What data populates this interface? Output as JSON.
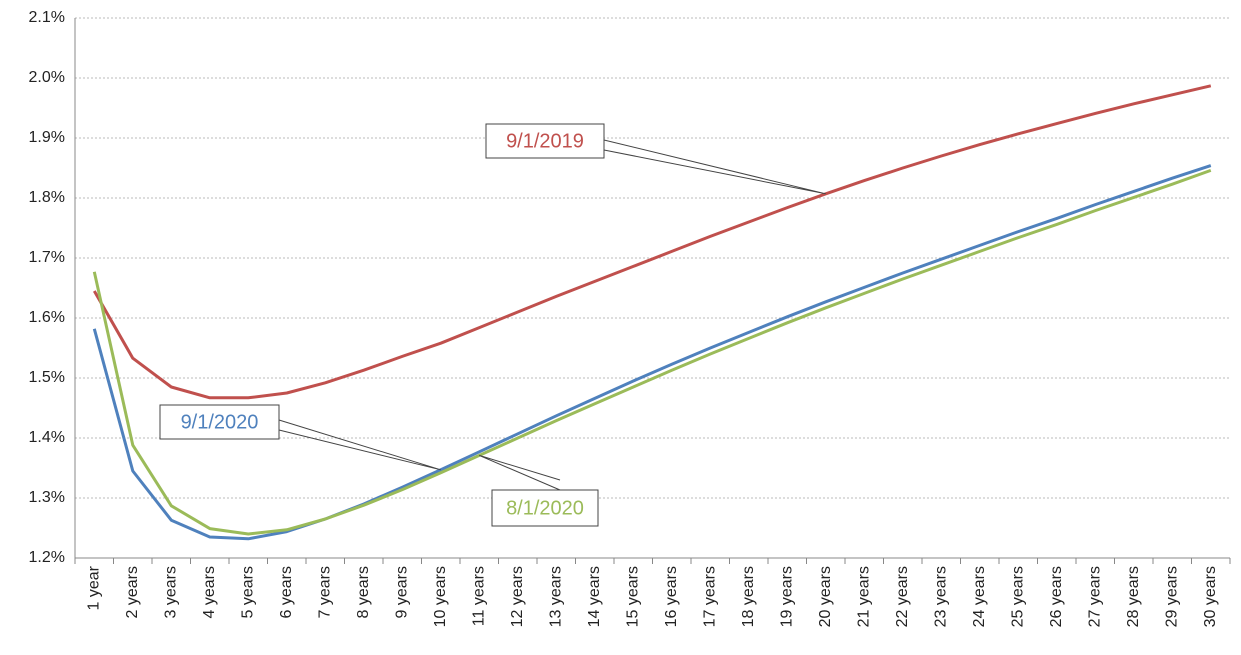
{
  "chart_data": {
    "type": "line",
    "categories": [
      "1 year",
      "2 years",
      "3 years",
      "4 years",
      "5 years",
      "6 years",
      "7 years",
      "8 years",
      "9 years",
      "10 years",
      "11 years",
      "12 years",
      "13 years",
      "14 years",
      "15 years",
      "16 years",
      "17 years",
      "18 years",
      "19 years",
      "20 years",
      "21 years",
      "22 years",
      "23 years",
      "24 years",
      "25 years",
      "26 years",
      "27 years",
      "28 years",
      "29 years",
      "30 years"
    ],
    "series": [
      {
        "name": "9/1/2019",
        "color": "#c0504d",
        "values": [
          1.645,
          1.533,
          1.485,
          1.467,
          1.467,
          1.475,
          1.492,
          1.513,
          1.536,
          1.558,
          1.584,
          1.61,
          1.636,
          1.661,
          1.686,
          1.711,
          1.736,
          1.76,
          1.784,
          1.807,
          1.829,
          1.85,
          1.87,
          1.889,
          1.907,
          1.924,
          1.941,
          1.957,
          1.972,
          1.987
        ]
      },
      {
        "name": "9/1/2020",
        "color": "#4f81bd",
        "values": [
          1.582,
          1.345,
          1.263,
          1.235,
          1.232,
          1.244,
          1.265,
          1.29,
          1.318,
          1.347,
          1.377,
          1.407,
          1.437,
          1.466,
          1.495,
          1.523,
          1.55,
          1.576,
          1.602,
          1.627,
          1.651,
          1.675,
          1.698,
          1.721,
          1.744,
          1.766,
          1.789,
          1.811,
          1.833,
          1.854
        ]
      },
      {
        "name": "8/1/2020",
        "color": "#9bbb59",
        "values": [
          1.677,
          1.388,
          1.287,
          1.249,
          1.24,
          1.247,
          1.265,
          1.288,
          1.314,
          1.342,
          1.371,
          1.4,
          1.429,
          1.457,
          1.485,
          1.513,
          1.54,
          1.566,
          1.592,
          1.617,
          1.641,
          1.665,
          1.688,
          1.711,
          1.734,
          1.756,
          1.779,
          1.801,
          1.823,
          1.846
        ]
      }
    ],
    "ylim": [
      1.2,
      2.1
    ],
    "yticks": [
      {
        "value": 1.2,
        "label": "1.2%"
      },
      {
        "value": 1.3,
        "label": "1.3%"
      },
      {
        "value": 1.4,
        "label": "1.4%"
      },
      {
        "value": 1.5,
        "label": "1.5%"
      },
      {
        "value": 1.6,
        "label": "1.6%"
      },
      {
        "value": 1.7,
        "label": "1.7%"
      },
      {
        "value": 1.8,
        "label": "1.8%"
      },
      {
        "value": 1.9,
        "label": "1.9%"
      },
      {
        "value": 2.0,
        "label": "2.0%"
      },
      {
        "value": 2.1,
        "label": "2.1%"
      }
    ],
    "grid": true
  }
}
